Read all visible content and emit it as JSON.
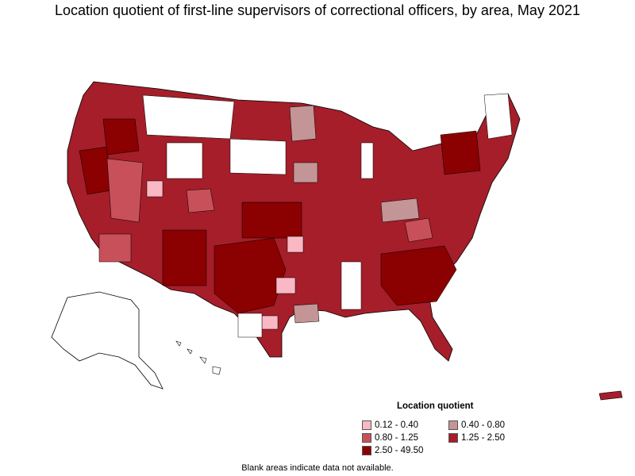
{
  "map": {
    "title": "Location quotient of first-line supervisors of correctional officers, by area, May 2021",
    "legend": {
      "title": "Location quotient",
      "items": [
        {
          "label": "0.12 - 0.40",
          "color": "#f9b8c3"
        },
        {
          "label": "0.40 - 0.80",
          "color": "#c49596"
        },
        {
          "label": "0.80 - 1.25",
          "color": "#c8505a"
        },
        {
          "label": "1.25 - 2.50",
          "color": "#a51e2a"
        },
        {
          "label": "2.50 - 49.50",
          "color": "#8b0000"
        }
      ]
    },
    "footnote": "Blank areas indicate data not available.",
    "colors": {
      "no_data": "#ffffff",
      "border": "#000000"
    }
  }
}
